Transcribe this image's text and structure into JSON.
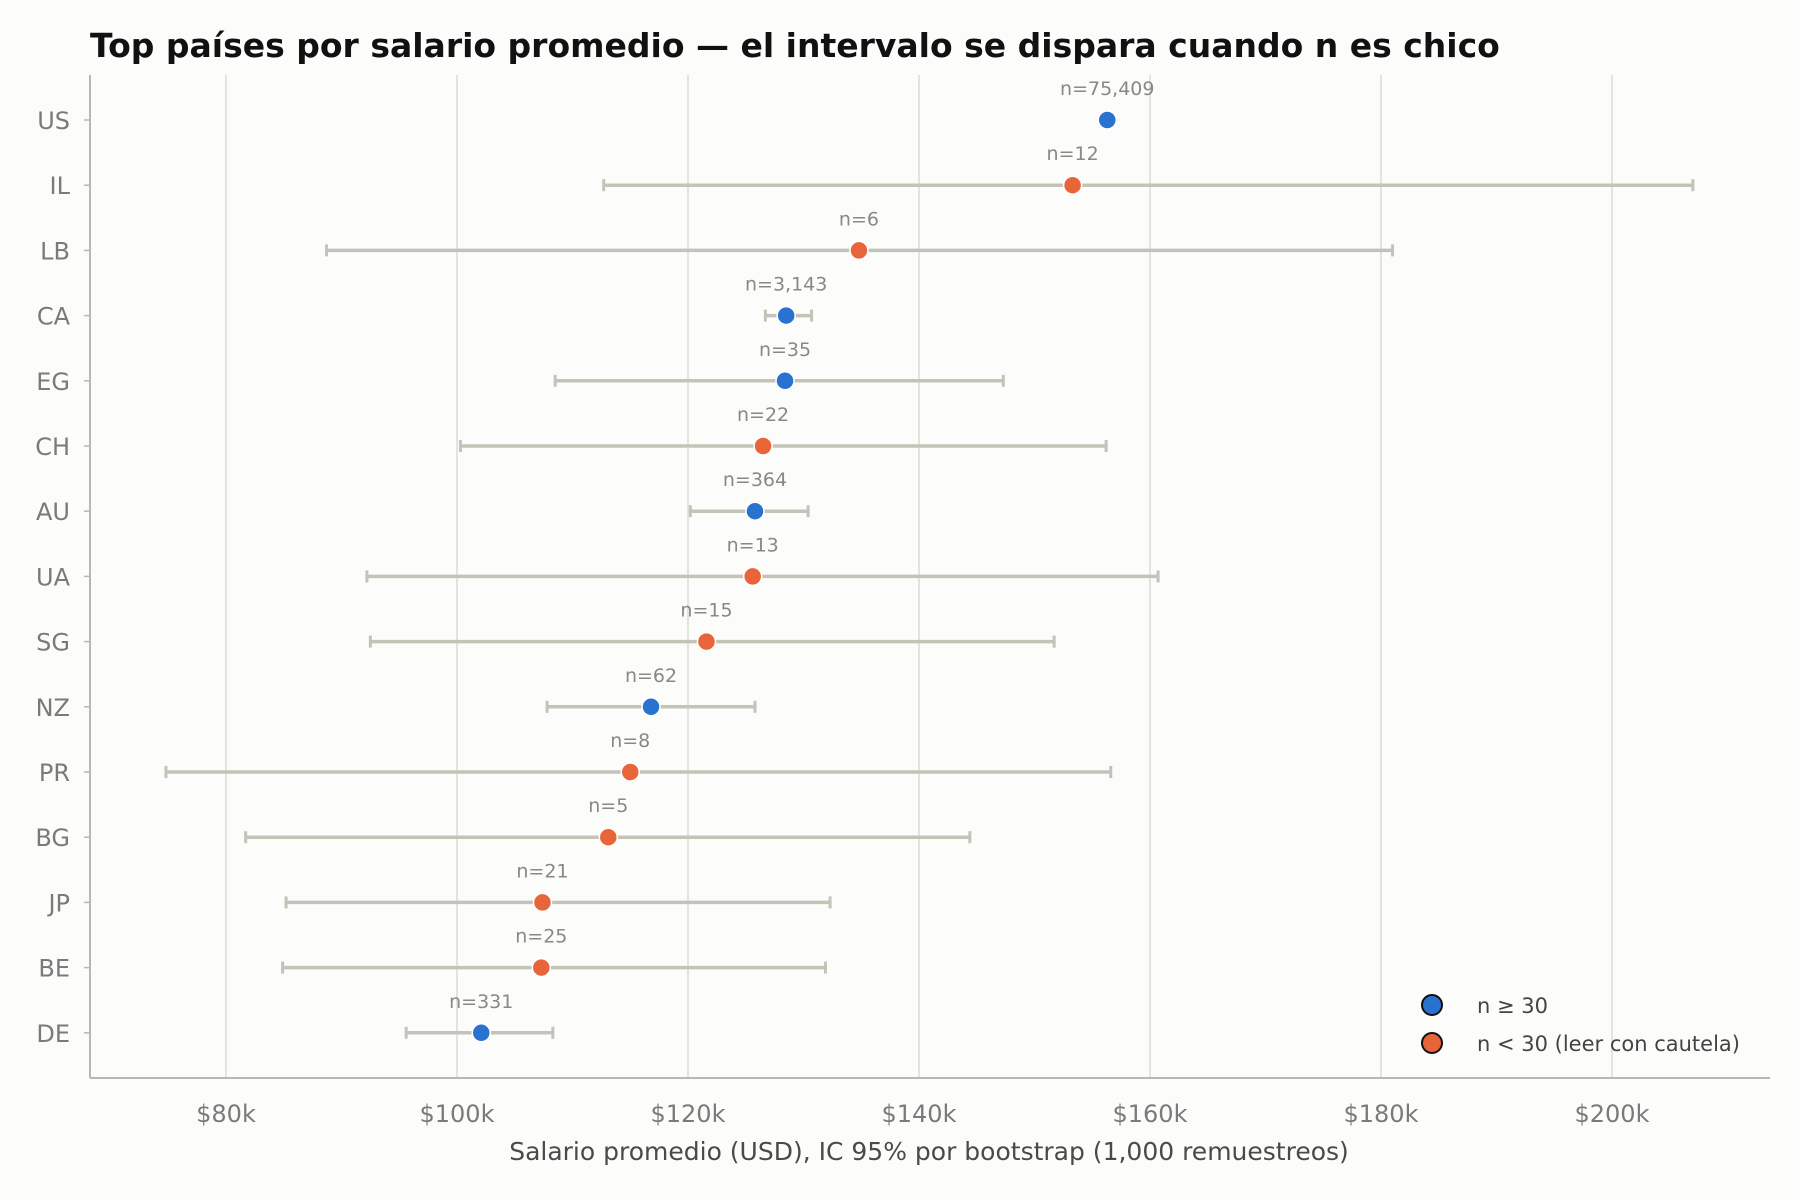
{
  "chart_data": {
    "type": "scatter",
    "title": "Top países por salario promedio — el intervalo se dispara cuando n es chico",
    "xlabel": "Salario promedio (USD), IC 95% por bootstrap (1,000 remuestreos)",
    "xlim": [
      68000,
      214000
    ],
    "x_ticks": [
      80000,
      100000,
      120000,
      140000,
      160000,
      180000,
      200000
    ],
    "x_tick_labels": [
      "$80k",
      "$100k",
      "$120k",
      "$140k",
      "$160k",
      "$180k",
      "$200k"
    ],
    "grid": "vertical",
    "legend_position": "bottom-right",
    "legend": [
      {
        "label": "n ≥ 30",
        "group": "large",
        "color": "#2a72d0"
      },
      {
        "label": "n < 30 (leer con cautela)",
        "group": "small",
        "color": "#e8653a"
      }
    ],
    "colors": {
      "large": "#2a72d0",
      "small": "#e8653a",
      "errorbar": "#c3c3b8",
      "grid": "#dcdcd6",
      "axis": "#b8b8b0"
    },
    "points": [
      {
        "country": "US",
        "mean": 156300,
        "lo": 156300,
        "hi": 156300,
        "n_label": "n=75,409",
        "group": "large"
      },
      {
        "country": "IL",
        "mean": 153300,
        "lo": 112700,
        "hi": 207000,
        "n_label": "n=12",
        "group": "small"
      },
      {
        "country": "LB",
        "mean": 134800,
        "lo": 88700,
        "hi": 181000,
        "n_label": "n=6",
        "group": "small"
      },
      {
        "country": "CA",
        "mean": 128500,
        "lo": 126700,
        "hi": 130700,
        "n_label": "n=3,143",
        "group": "large"
      },
      {
        "country": "EG",
        "mean": 128400,
        "lo": 108500,
        "hi": 147300,
        "n_label": "n=35",
        "group": "large"
      },
      {
        "country": "CH",
        "mean": 126500,
        "lo": 100300,
        "hi": 156200,
        "n_label": "n=22",
        "group": "small"
      },
      {
        "country": "AU",
        "mean": 125800,
        "lo": 120200,
        "hi": 130400,
        "n_label": "n=364",
        "group": "large"
      },
      {
        "country": "UA",
        "mean": 125600,
        "lo": 92200,
        "hi": 160700,
        "n_label": "n=13",
        "group": "small"
      },
      {
        "country": "SG",
        "mean": 121600,
        "lo": 92500,
        "hi": 151700,
        "n_label": "n=15",
        "group": "small"
      },
      {
        "country": "NZ",
        "mean": 116800,
        "lo": 107800,
        "hi": 125800,
        "n_label": "n=62",
        "group": "large"
      },
      {
        "country": "PR",
        "mean": 115000,
        "lo": 74800,
        "hi": 156600,
        "n_label": "n=8",
        "group": "small"
      },
      {
        "country": "BG",
        "mean": 113100,
        "lo": 81700,
        "hi": 144400,
        "n_label": "n=5",
        "group": "small"
      },
      {
        "country": "JP",
        "mean": 107400,
        "lo": 85200,
        "hi": 132300,
        "n_label": "n=21",
        "group": "small"
      },
      {
        "country": "BE",
        "mean": 107300,
        "lo": 84900,
        "hi": 131900,
        "n_label": "n=25",
        "group": "small"
      },
      {
        "country": "DE",
        "mean": 102100,
        "lo": 95600,
        "hi": 108300,
        "n_label": "n=331",
        "group": "large"
      }
    ]
  }
}
